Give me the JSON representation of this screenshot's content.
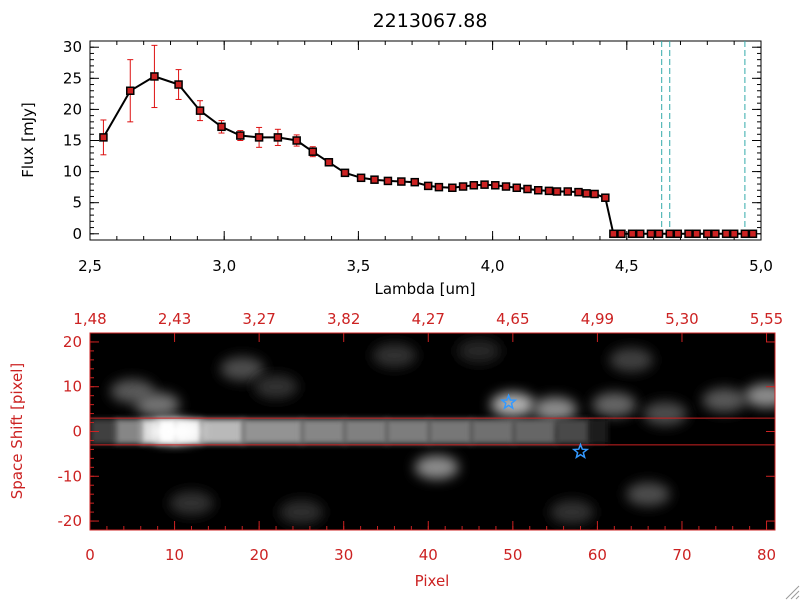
{
  "title": "2213067.88",
  "colors": {
    "line": "#000000",
    "marker": "#cc2222",
    "errorbar": "#dd1111",
    "cyan": "#33aaaa",
    "red_axis": "#cc2222",
    "star": "#3399ff"
  },
  "chart_data": [
    {
      "type": "line",
      "name": "spectrum",
      "title": "2213067.88",
      "xlabel": "Lambda [um]",
      "ylabel": "Flux [mJy]",
      "xlim": [
        2.5,
        5.0
      ],
      "ylim": [
        -1,
        31
      ],
      "x_ticks": [
        2.5,
        3.0,
        3.5,
        4.0,
        4.5,
        5.0
      ],
      "x_tick_labels": [
        "2,5",
        "3,0",
        "3,5",
        "4,0",
        "4,5",
        "5,0"
      ],
      "y_ticks": [
        0,
        5,
        10,
        15,
        20,
        25,
        30
      ],
      "y_tick_labels": [
        "0",
        "5",
        "10",
        "15",
        "20",
        "25",
        "30"
      ],
      "x": [
        2.55,
        2.65,
        2.74,
        2.83,
        2.91,
        2.99,
        3.06,
        3.13,
        3.2,
        3.27,
        3.33,
        3.39,
        3.45,
        3.51,
        3.56,
        3.61,
        3.66,
        3.71,
        3.76,
        3.8,
        3.85,
        3.89,
        3.93,
        3.97,
        4.01,
        4.05,
        4.09,
        4.13,
        4.17,
        4.21,
        4.24,
        4.28,
        4.32,
        4.35,
        4.38,
        4.42,
        4.45,
        4.48,
        4.52,
        4.55,
        4.59,
        4.62,
        4.66,
        4.69,
        4.73,
        4.76,
        4.8,
        4.83,
        4.87,
        4.9,
        4.94,
        4.97
      ],
      "y": [
        15.5,
        23.0,
        25.3,
        24.0,
        19.8,
        17.2,
        15.8,
        15.5,
        15.5,
        15.0,
        13.2,
        11.5,
        9.8,
        9.0,
        8.7,
        8.5,
        8.4,
        8.3,
        7.7,
        7.5,
        7.4,
        7.6,
        7.8,
        7.9,
        7.8,
        7.6,
        7.4,
        7.2,
        7.0,
        6.9,
        6.8,
        6.8,
        6.7,
        6.5,
        6.4,
        5.8,
        0,
        0,
        0,
        0,
        0,
        0,
        0,
        0,
        0,
        0,
        0,
        0,
        0,
        0,
        0,
        0
      ],
      "yerr": [
        2.8,
        5.0,
        5.0,
        2.4,
        1.6,
        1.0,
        0.8,
        1.6,
        1.3,
        0.9,
        0.8,
        0.5,
        0.5,
        0.4,
        0.3,
        0.3,
        0.3,
        0.3,
        0.3,
        0.3,
        0.3,
        0.3,
        0.3,
        0.3,
        0.3,
        0.3,
        0.3,
        0.3,
        0.3,
        0.3,
        0.3,
        0.3,
        0.3,
        0.3,
        0.3,
        0.4,
        0,
        0,
        0,
        0,
        0,
        0,
        0,
        0,
        0,
        0,
        0,
        0,
        0,
        0,
        0,
        0
      ],
      "vlines_cyan": [
        4.63,
        4.66,
        4.94
      ]
    },
    {
      "type": "heatmap",
      "name": "2d-spectrum",
      "xlabel": "Pixel",
      "ylabel": "Space Shift [pixel]",
      "xlim": [
        0,
        81
      ],
      "ylim": [
        -22,
        22
      ],
      "x_ticks": [
        0,
        10,
        20,
        30,
        40,
        50,
        60,
        70,
        80
      ],
      "x_tick_labels": [
        "0",
        "10",
        "20",
        "30",
        "40",
        "50",
        "60",
        "70",
        "80"
      ],
      "y_ticks": [
        -20,
        -10,
        0,
        10,
        20
      ],
      "y_tick_labels": [
        "-20",
        "-10",
        "0",
        "10",
        "20"
      ],
      "top_axis_positions": [
        0,
        10,
        20,
        30,
        40,
        50,
        60,
        70,
        80
      ],
      "top_axis_labels": [
        "1,48",
        "2,43",
        "3,27",
        "3,82",
        "4,27",
        "4,65",
        "4,99",
        "5,30",
        "5,55"
      ],
      "hlines_red": [
        3,
        -3
      ],
      "stars": [
        {
          "x": 49.5,
          "y": 6.5
        },
        {
          "x": 58,
          "y": -4.5
        }
      ],
      "trace_profile": [
        {
          "x": 0,
          "v": 0.15
        },
        {
          "x": 3,
          "v": 0.35
        },
        {
          "x": 6,
          "v": 0.7
        },
        {
          "x": 8,
          "v": 0.95
        },
        {
          "x": 10,
          "v": 1.0
        },
        {
          "x": 13,
          "v": 0.85
        },
        {
          "x": 18,
          "v": 0.6
        },
        {
          "x": 25,
          "v": 0.55
        },
        {
          "x": 30,
          "v": 0.5
        },
        {
          "x": 35,
          "v": 0.5
        },
        {
          "x": 40,
          "v": 0.48
        },
        {
          "x": 45,
          "v": 0.45
        },
        {
          "x": 50,
          "v": 0.42
        },
        {
          "x": 55,
          "v": 0.38
        },
        {
          "x": 59,
          "v": 0.2
        },
        {
          "x": 61,
          "v": 0.03
        }
      ],
      "blobs": [
        {
          "x": 5,
          "y": 9,
          "v": 0.35
        },
        {
          "x": 8,
          "y": 6,
          "v": 0.45
        },
        {
          "x": 18,
          "y": 14,
          "v": 0.3
        },
        {
          "x": 22,
          "y": 10,
          "v": 0.2
        },
        {
          "x": 12,
          "y": -16,
          "v": 0.2
        },
        {
          "x": 25,
          "y": -18,
          "v": 0.18
        },
        {
          "x": 36,
          "y": 17,
          "v": 0.2
        },
        {
          "x": 41,
          "y": -8,
          "v": 0.55
        },
        {
          "x": 50,
          "y": 6,
          "v": 0.7
        },
        {
          "x": 55,
          "y": 5,
          "v": 0.55
        },
        {
          "x": 62,
          "y": 6,
          "v": 0.4
        },
        {
          "x": 68,
          "y": 4,
          "v": 0.3
        },
        {
          "x": 75,
          "y": 7,
          "v": 0.35
        },
        {
          "x": 80,
          "y": 8,
          "v": 0.55
        },
        {
          "x": 66,
          "y": -14,
          "v": 0.3
        },
        {
          "x": 57,
          "y": -18,
          "v": 0.2
        },
        {
          "x": 64,
          "y": 16,
          "v": 0.25
        },
        {
          "x": 46,
          "y": 18,
          "v": 0.15
        }
      ]
    }
  ]
}
